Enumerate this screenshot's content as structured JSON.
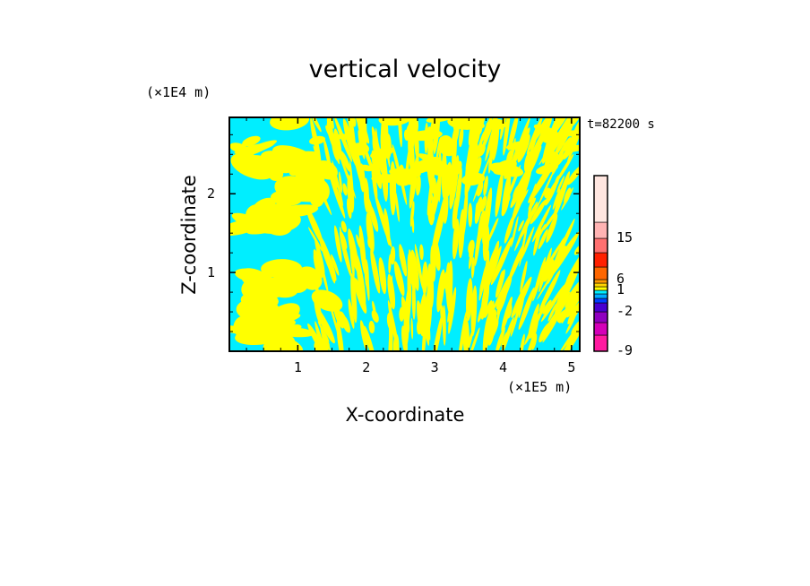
{
  "chart_data": {
    "type": "heatmap",
    "title": "vertical velocity",
    "xlabel": "X-coordinate",
    "ylabel": "Z-coordinate",
    "x_unit": "(×1E5 m)",
    "y_unit": "(×1E4 m)",
    "time_label": "t=82200 s",
    "xlim": [
      0,
      5.12
    ],
    "ylim": [
      0,
      2.97
    ],
    "x_ticks": [
      1,
      2,
      3,
      4,
      5
    ],
    "y_ticks": [
      1,
      2
    ],
    "x_tick_labels": [
      "1",
      "2",
      "3",
      "4",
      "5"
    ],
    "y_tick_labels": [
      "1",
      "2"
    ],
    "field_colors": {
      "negative": "#00eeff",
      "positive": "#ffff00"
    },
    "colorbar": {
      "levels": [
        {
          "color": "#ff1aa0",
          "label": "-9"
        },
        {
          "color": "#d400b8",
          "label": ""
        },
        {
          "color": "#9000c0",
          "label": ""
        },
        {
          "color": "#4800d0",
          "label": "-2"
        },
        {
          "color": "#0040ff",
          "label": ""
        },
        {
          "color": "#00aaff",
          "label": ""
        },
        {
          "color": "#00eeff",
          "label": ""
        },
        {
          "color": "#ffff00",
          "label": "1"
        },
        {
          "color": "#ffd400",
          "label": ""
        },
        {
          "color": "#ff9a00",
          "label": ""
        },
        {
          "color": "#ff6600",
          "label": "6"
        },
        {
          "color": "#ff2000",
          "label": ""
        },
        {
          "color": "#ff7070",
          "label": ""
        },
        {
          "color": "#ffb3b3",
          "label": "15"
        },
        {
          "color": "#ffe6e0",
          "label": ""
        }
      ]
    }
  }
}
